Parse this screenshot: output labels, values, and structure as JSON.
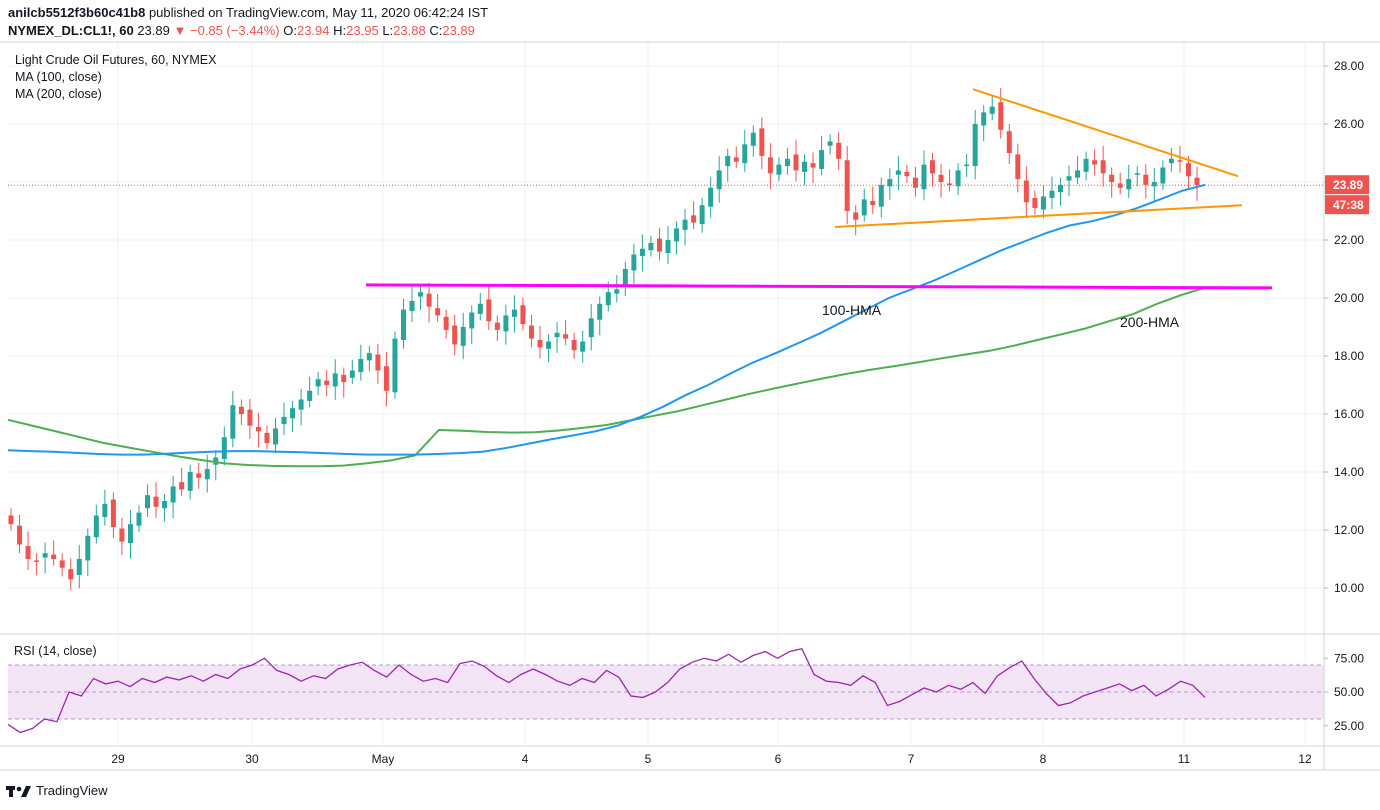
{
  "header": {
    "user": "anilcb5512f3b60c41b8",
    "published": "published on TradingView.com, May 11, 2020 06:42:24 IST",
    "symbol": "NYMEX_DL:CL1!, 60",
    "last": "23.89",
    "change": "−0.85 (−3.44%)",
    "o_label": "O:",
    "o": "23.94",
    "h_label": "H:",
    "h": "23.95",
    "l_label": "L:",
    "l": "23.88",
    "c_label": "C:",
    "c": "23.89"
  },
  "legend": {
    "title": "Light Crude Oil Futures, 60, NYMEX",
    "ma1": "MA (100, close)",
    "ma2": "MA (200, close)"
  },
  "rsi_label": "RSI (14, close)",
  "footer": {
    "brand": "TradingView"
  },
  "colors": {
    "up": "#26a69a",
    "down": "#ef5350",
    "hma100": "#2196f3",
    "hma200": "#4caf50",
    "resistance": "#ff00ff",
    "trend": "#ff9800",
    "rsi": "#9c27b0",
    "rsi_band": "#f3e5f5"
  },
  "chart_data": [
    {
      "type": "candlestick",
      "title": "Light Crude Oil Futures, 60, NYMEX",
      "x_ticks": [
        "29",
        "30",
        "May",
        "4",
        "5",
        "6",
        "7",
        "8",
        "11",
        "12"
      ],
      "y_ticks": [
        "10.00",
        "12.00",
        "14.00",
        "16.00",
        "18.00",
        "20.00",
        "22.00",
        "24.00",
        "26.00",
        "28.00"
      ],
      "ylim": [
        8.5,
        28.8
      ],
      "last_price": "23.89",
      "countdown": "47:38",
      "closes": [
        12.2,
        11.5,
        11.0,
        10.9,
        11.2,
        11.0,
        10.7,
        10.3,
        11.0,
        11.8,
        12.5,
        12.9,
        12.1,
        11.6,
        12.2,
        12.6,
        13.2,
        12.8,
        13.0,
        13.5,
        13.4,
        14.0,
        13.8,
        14.1,
        14.5,
        15.2,
        16.3,
        16.0,
        15.6,
        15.4,
        15.0,
        15.5,
        15.9,
        16.2,
        16.5,
        16.8,
        17.2,
        17.0,
        17.4,
        17.1,
        17.5,
        17.9,
        18.1,
        17.5,
        16.8,
        18.6,
        19.6,
        19.9,
        20.2,
        19.7,
        19.4,
        18.9,
        18.4,
        19.0,
        19.5,
        19.8,
        19.2,
        18.9,
        19.4,
        19.6,
        19.1,
        18.6,
        18.3,
        18.5,
        18.8,
        18.6,
        18.2,
        18.5,
        19.3,
        19.8,
        20.2,
        20.3,
        21.0,
        21.5,
        21.7,
        21.9,
        21.6,
        22.0,
        22.4,
        22.7,
        22.6,
        23.2,
        23.8,
        24.4,
        24.9,
        24.7,
        25.3,
        25.7,
        24.9,
        24.3,
        24.6,
        24.8,
        24.4,
        24.7,
        24.5,
        25.1,
        25.4,
        24.8,
        23.0,
        22.7,
        23.4,
        23.2,
        23.9,
        24.1,
        24.4,
        24.2,
        23.8,
        24.6,
        24.3,
        24.0,
        23.9,
        24.4,
        24.6,
        26.0,
        26.4,
        26.6,
        25.8,
        25.0,
        24.1,
        23.3,
        23.1,
        23.5,
        23.7,
        23.9,
        24.2,
        24.4,
        24.8,
        24.6,
        24.3,
        24.0,
        23.8,
        24.1,
        24.3,
        23.9,
        24.0,
        24.5,
        24.8,
        24.7,
        24.2,
        23.89
      ],
      "series": [
        {
          "name": "100-HMA",
          "values": [
            14.75,
            14.72,
            14.7,
            14.66,
            14.62,
            14.6,
            14.6,
            14.63,
            14.67,
            14.7,
            14.72,
            14.72,
            14.7,
            14.68,
            14.65,
            14.62,
            14.6,
            14.6,
            14.6,
            14.62,
            14.65,
            14.7,
            14.82,
            14.97,
            15.12,
            15.26,
            15.4,
            15.6,
            15.9,
            16.25,
            16.65,
            17.0,
            17.4,
            17.78,
            18.1,
            18.45,
            18.8,
            19.2,
            19.6,
            20.0,
            20.3,
            20.6,
            20.95,
            21.3,
            21.65,
            21.95,
            22.25,
            22.5,
            22.65,
            22.85,
            23.1,
            23.4,
            23.7,
            23.9
          ]
        },
        {
          "name": "200-HMA",
          "values": [
            15.8,
            15.6,
            15.4,
            15.2,
            15.0,
            14.85,
            14.7,
            14.55,
            14.42,
            14.3,
            14.24,
            14.21,
            14.2,
            14.2,
            14.22,
            14.3,
            14.4,
            14.57,
            15.45,
            15.42,
            15.38,
            15.36,
            15.37,
            15.43,
            15.52,
            15.62,
            15.78,
            15.94,
            16.1,
            16.3,
            16.5,
            16.7,
            16.88,
            17.05,
            17.22,
            17.38,
            17.52,
            17.65,
            17.78,
            17.92,
            18.05,
            18.18,
            18.35,
            18.55,
            18.75,
            18.95,
            19.2,
            19.45,
            19.8,
            20.1,
            20.35
          ]
        },
        {
          "name": "RSI 14",
          "values": [
            26,
            20,
            23,
            30,
            28,
            50,
            47,
            60,
            56,
            58,
            54,
            60,
            57,
            61,
            59,
            62,
            58,
            63,
            60,
            67,
            70,
            75,
            66,
            63,
            58,
            62,
            60,
            67,
            70,
            72,
            66,
            61,
            70,
            63,
            58,
            60,
            57,
            71,
            73,
            69,
            62,
            57,
            63,
            67,
            63,
            58,
            55,
            60,
            57,
            66,
            61,
            47,
            46,
            50,
            57,
            67,
            72,
            75,
            73,
            78,
            72,
            77,
            80,
            75,
            80,
            82,
            63,
            58,
            57,
            55,
            62,
            57,
            40,
            43,
            48,
            53,
            50,
            55,
            52,
            57,
            49,
            62,
            68,
            73,
            60,
            49,
            40,
            42,
            47,
            50,
            53,
            56,
            51,
            55,
            47,
            52,
            58,
            55,
            46
          ]
        }
      ],
      "annotations": [
        {
          "text": "100-HMA"
        },
        {
          "text": "200-HMA"
        }
      ],
      "levels": {
        "resistance": 20.4,
        "support_trend": [
          22.45,
          23.2
        ],
        "upper_trend": [
          27.2,
          24.2
        ]
      }
    },
    {
      "type": "line",
      "title": "RSI (14, close)",
      "y_ticks": [
        "25.00",
        "50.00",
        "75.00"
      ],
      "ylim": [
        10,
        88
      ],
      "band": [
        30,
        70
      ]
    }
  ]
}
